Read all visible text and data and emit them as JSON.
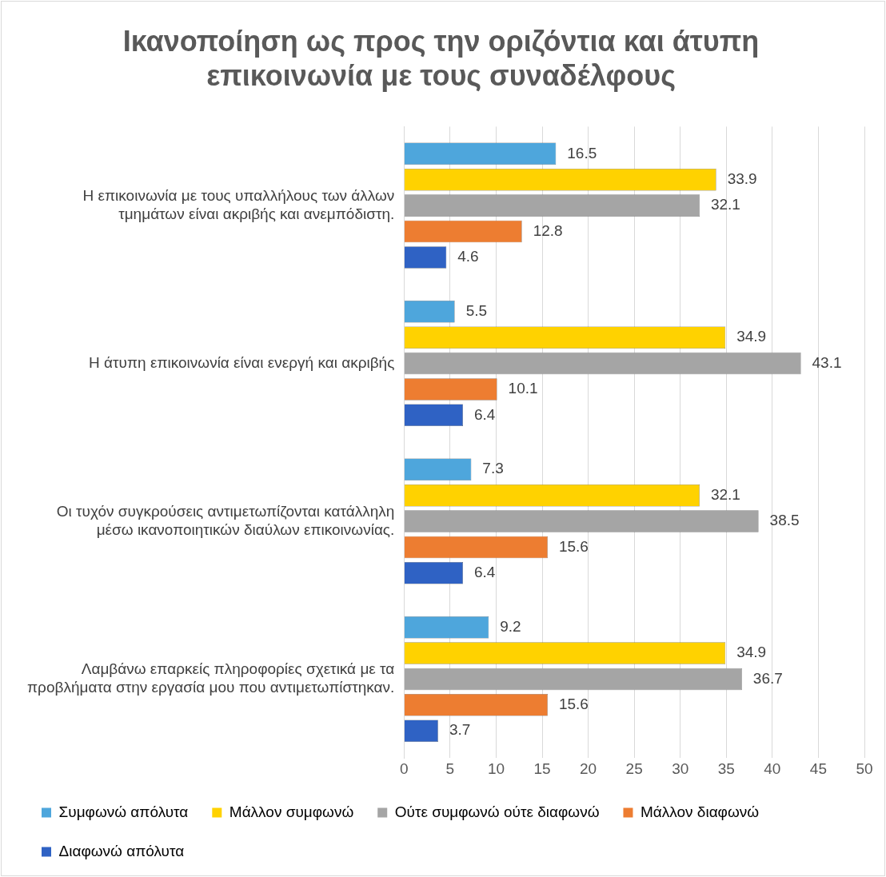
{
  "chart_data": {
    "type": "bar",
    "orientation": "horizontal",
    "title": "Ικανοποίηση ως προς την οριζόντια και άτυπη επικοινωνία με τους συναδέλφους",
    "categories": [
      "Η επικοινωνία με τους υπαλλήλους των άλλων τμημάτων είναι ακριβής και ανεμπόδιστη.",
      "Η άτυπη επικοινωνία είναι ενεργή και ακριβής",
      "Οι τυχόν συγκρούσεις αντιμετωπίζονται κατάλληλη μέσω ικανοποιητικών διαύλων επικοινωνίας.",
      "Λαμβάνω επαρκείς πληροφορίες σχετικά με τα προβλήματα στην εργασία μου που αντιμετωπίστηκαν."
    ],
    "series": [
      {
        "name": "Συμφωνώ απόλυτα",
        "color": "#4ea6dc",
        "values": [
          16.5,
          5.5,
          7.3,
          9.2
        ]
      },
      {
        "name": "Μάλλον συμφωνώ",
        "color": "#ffd200",
        "values": [
          33.9,
          34.9,
          32.1,
          34.9
        ]
      },
      {
        "name": "Ούτε συμφωνώ ούτε διαφωνώ",
        "color": "#a5a5a5",
        "values": [
          32.1,
          43.1,
          38.5,
          36.7
        ]
      },
      {
        "name": "Μάλλον διαφωνώ",
        "color": "#ed7d31",
        "values": [
          12.8,
          10.1,
          15.6,
          15.6
        ]
      },
      {
        "name": "Διαφωνώ απόλυτα",
        "color": "#2f62c4",
        "values": [
          4.6,
          6.4,
          6.4,
          3.7
        ]
      }
    ],
    "xlim": [
      0,
      50
    ],
    "xticks": [
      0,
      5,
      10,
      15,
      20,
      25,
      30,
      35,
      40,
      45,
      50
    ],
    "grid": "x",
    "data_labels": true,
    "legend": "bottom"
  }
}
